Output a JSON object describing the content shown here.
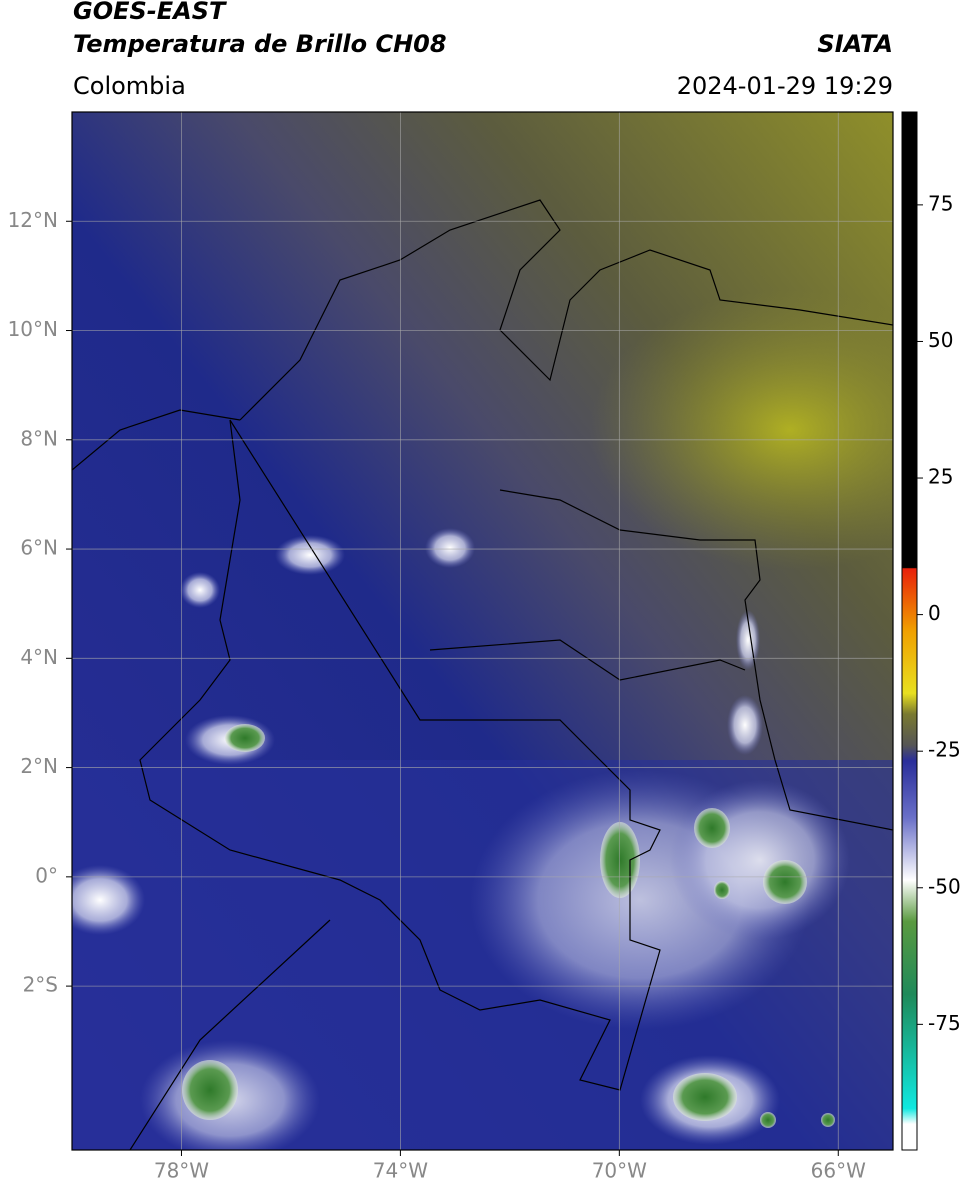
{
  "header": {
    "satellite": "GOES-EAST",
    "product": "Temperatura de Brillo CH08",
    "region": "Colombia",
    "agency": "SIATA",
    "datetime": "2024-01-29 19:29"
  },
  "map": {
    "xlim": [
      -80,
      -65
    ],
    "ylim": [
      -5,
      14
    ],
    "xticks": [
      {
        "value": -78,
        "label": "78°W"
      },
      {
        "value": -74,
        "label": "74°W"
      },
      {
        "value": -70,
        "label": "70°W"
      },
      {
        "value": -66,
        "label": "66°W"
      }
    ],
    "yticks": [
      {
        "value": 12,
        "label": "12°N"
      },
      {
        "value": 10,
        "label": "10°N"
      },
      {
        "value": 8,
        "label": "8°N"
      },
      {
        "value": 6,
        "label": "6°N"
      },
      {
        "value": 4,
        "label": "4°N"
      },
      {
        "value": 2,
        "label": "2°N"
      },
      {
        "value": 0,
        "label": "0°"
      },
      {
        "value": -2,
        "label": "2°S"
      }
    ],
    "grid": true
  },
  "colorbar": {
    "lim": [
      -98,
      92
    ],
    "ticks": [
      75,
      50,
      25,
      0,
      -25,
      -50,
      -75
    ]
  }
}
